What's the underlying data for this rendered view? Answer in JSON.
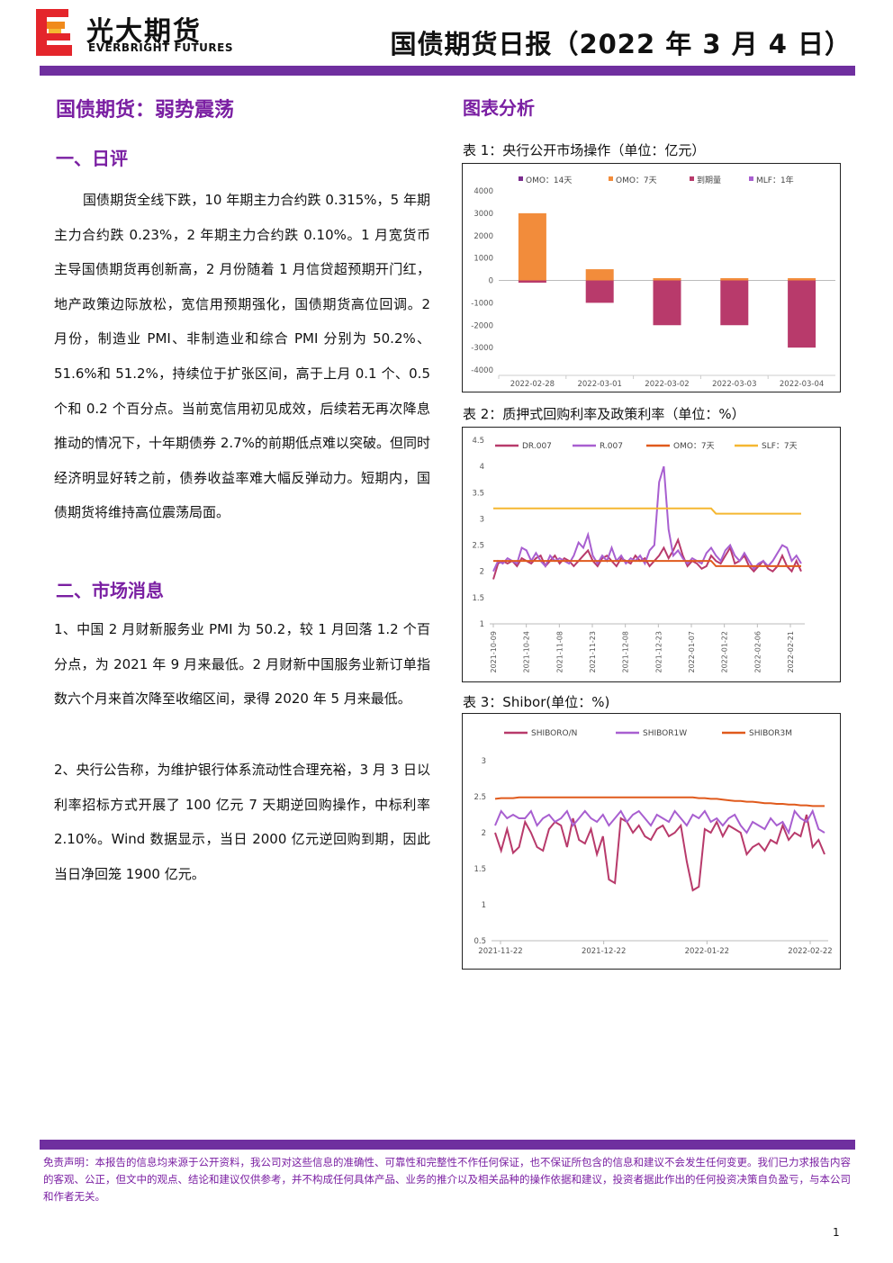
{
  "header": {
    "brand_cn": "光大期货",
    "brand_en": "EVERBRIGHT FUTURES",
    "report_title": "国债期货日报（2022 年 3 月 4 日）"
  },
  "article": {
    "title": "国债期货：弱势震荡",
    "section1_title": "一、日评",
    "section1_text": "国债期货全线下跌，10 年期主力合约跌 0.315%，5 年期主力合约跌 0.23%，2 年期主力合约跌 0.10%。1 月宽货币主导国债期货再创新高，2 月份随着 1 月信贷超预期开门红，地产政策边际放松，宽信用预期强化，国债期货高位回调。2 月份，制造业 PMI、非制造业和综合 PMI 分别为 50.2%、51.6%和 51.2%，持续位于扩张区间，高于上月 0.1 个、0.5 个和 0.2 个百分点。当前宽信用初见成效，后续若无再次降息推动的情况下，十年期债券 2.7%的前期低点难以突破。但同时经济明显好转之前，债券收益率难大幅反弹动力。短期内，国债期货将维持高位震荡局面。",
    "section2_title": "二、市场消息",
    "news1": "1、中国 2 月财新服务业 PMI 为 50.2，较 1 月回落 1.2 个百分点，为 2021 年 9 月来最低。2 月财新中国服务业新订单指数六个月来首次降至收缩区间，录得 2020 年 5 月来最低。",
    "news2": "2、央行公告称，为维护银行体系流动性合理充裕，3 月 3 日以利率招标方式开展了 100 亿元 7 天期逆回购操作，中标利率 2.10%。Wind 数据显示，当日 2000 亿元逆回购到期，因此当日净回笼 1900 亿元。"
  },
  "charts_section_title": "图表分析",
  "captions": {
    "c1": "表 1：央行公开市场操作（单位：亿元）",
    "c2": "表 2：质押式回购利率及政策利率（单位：%）",
    "c3": "表 3：Shibor(单位：%)"
  },
  "chart_data": [
    {
      "type": "bar",
      "categories": [
        "2022-02-28",
        "2022-03-01",
        "2022-03-02",
        "2022-03-03",
        "2022-03-04"
      ],
      "series": [
        {
          "name": "OMO：14天",
          "color": "#7b2d8e",
          "values": [
            0,
            0,
            0,
            0,
            0
          ]
        },
        {
          "name": "OMO：7天",
          "color": "#f28c3b",
          "values": [
            3000,
            500,
            100,
            100,
            100
          ]
        },
        {
          "name": "到期量",
          "color": "#b83a6b",
          "values": [
            -100,
            -1000,
            -2000,
            -2000,
            -3000
          ]
        },
        {
          "name": "MLF：1年",
          "color": "#a85fd0",
          "values": [
            0,
            0,
            0,
            0,
            0
          ]
        }
      ],
      "ylim": [
        -4000,
        4000
      ],
      "yticks": [
        4000,
        3000,
        2000,
        1000,
        0,
        -1000,
        -2000,
        -3000,
        -4000
      ]
    },
    {
      "type": "line",
      "x_ticks": [
        "2021-10-09",
        "2021-10-24",
        "2021-11-08",
        "2021-11-23",
        "2021-12-08",
        "2021-12-23",
        "2022-01-07",
        "2022-01-22",
        "2022-02-06",
        "2022-02-21"
      ],
      "ylim": [
        1,
        4.5
      ],
      "yticks": [
        "4.5",
        "4",
        "3.5",
        "3",
        "2.5",
        "2",
        "1.5",
        "1"
      ],
      "series": [
        {
          "name": "DR.007",
          "color": "#b83a6b",
          "values": [
            1.85,
            2.15,
            2.2,
            2.15,
            2.2,
            2.1,
            2.25,
            2.2,
            2.15,
            2.25,
            2.3,
            2.1,
            2.2,
            2.3,
            2.15,
            2.25,
            2.2,
            2.1,
            2.2,
            2.3,
            2.4,
            2.2,
            2.1,
            2.25,
            2.3,
            2.2,
            2.1,
            2.25,
            2.2,
            2.15,
            2.3,
            2.2,
            2.25,
            2.1,
            2.2,
            2.3,
            2.45,
            2.25,
            2.4,
            2.6,
            2.3,
            2.1,
            2.2,
            2.15,
            2.05,
            2.1,
            2.3,
            2.2,
            2.15,
            2.3,
            2.45,
            2.15,
            2.2,
            2.3,
            2.1,
            2.0,
            2.1,
            2.2,
            2.05,
            2.0,
            2.1,
            2.3,
            2.1,
            2.0,
            2.2,
            2.0
          ]
        },
        {
          "name": "R.007",
          "color": "#a85fd0",
          "values": [
            2.0,
            2.2,
            2.15,
            2.25,
            2.2,
            2.15,
            2.45,
            2.4,
            2.2,
            2.35,
            2.2,
            2.1,
            2.3,
            2.2,
            2.25,
            2.2,
            2.15,
            2.3,
            2.55,
            2.45,
            2.7,
            2.3,
            2.15,
            2.3,
            2.2,
            2.45,
            2.2,
            2.3,
            2.15,
            2.25,
            2.2,
            2.3,
            2.15,
            2.4,
            2.5,
            3.7,
            4.0,
            2.8,
            2.3,
            2.4,
            2.25,
            2.15,
            2.25,
            2.2,
            2.15,
            2.35,
            2.45,
            2.3,
            2.2,
            2.4,
            2.5,
            2.3,
            2.2,
            2.35,
            2.2,
            2.05,
            2.15,
            2.2,
            2.1,
            2.2,
            2.35,
            2.5,
            2.45,
            2.2,
            2.3,
            2.15
          ]
        },
        {
          "name": "OMO：7天",
          "color": "#e05a1c",
          "values": [
            2.2,
            2.2,
            2.2,
            2.2,
            2.2,
            2.2,
            2.2,
            2.2,
            2.2,
            2.2,
            2.2,
            2.2,
            2.2,
            2.2,
            2.2,
            2.2,
            2.2,
            2.2,
            2.2,
            2.2,
            2.2,
            2.2,
            2.2,
            2.2,
            2.2,
            2.2,
            2.2,
            2.2,
            2.2,
            2.2,
            2.2,
            2.2,
            2.2,
            2.2,
            2.2,
            2.2,
            2.2,
            2.2,
            2.2,
            2.2,
            2.2,
            2.2,
            2.2,
            2.2,
            2.2,
            2.2,
            2.2,
            2.1,
            2.1,
            2.1,
            2.1,
            2.1,
            2.1,
            2.1,
            2.1,
            2.1,
            2.1,
            2.1,
            2.1,
            2.1,
            2.1,
            2.1,
            2.1,
            2.1,
            2.1,
            2.1
          ]
        },
        {
          "name": "SLF：7天",
          "color": "#f5b731",
          "values": [
            3.2,
            3.2,
            3.2,
            3.2,
            3.2,
            3.2,
            3.2,
            3.2,
            3.2,
            3.2,
            3.2,
            3.2,
            3.2,
            3.2,
            3.2,
            3.2,
            3.2,
            3.2,
            3.2,
            3.2,
            3.2,
            3.2,
            3.2,
            3.2,
            3.2,
            3.2,
            3.2,
            3.2,
            3.2,
            3.2,
            3.2,
            3.2,
            3.2,
            3.2,
            3.2,
            3.2,
            3.2,
            3.2,
            3.2,
            3.2,
            3.2,
            3.2,
            3.2,
            3.2,
            3.2,
            3.2,
            3.2,
            3.1,
            3.1,
            3.1,
            3.1,
            3.1,
            3.1,
            3.1,
            3.1,
            3.1,
            3.1,
            3.1,
            3.1,
            3.1,
            3.1,
            3.1,
            3.1,
            3.1,
            3.1,
            3.1
          ]
        }
      ]
    },
    {
      "type": "line",
      "x_ticks": [
        "2021-11-22",
        "2021-12-22",
        "2022-01-22",
        "2022-02-22"
      ],
      "ylim": [
        0.5,
        3
      ],
      "yticks": [
        "3",
        "2.5",
        "2",
        "1.5",
        "1",
        "0.5"
      ],
      "series": [
        {
          "name": "SHIBORO/N",
          "color": "#b83a6b",
          "values": [
            2.0,
            1.75,
            2.05,
            1.72,
            1.8,
            2.15,
            2.0,
            1.8,
            1.75,
            2.05,
            2.15,
            2.1,
            1.8,
            2.2,
            1.9,
            1.85,
            2.05,
            1.7,
            1.95,
            1.35,
            1.3,
            2.2,
            2.15,
            2.0,
            2.1,
            1.95,
            1.9,
            2.05,
            2.1,
            1.95,
            2.0,
            2.1,
            1.6,
            1.2,
            1.25,
            2.05,
            2.0,
            2.15,
            1.95,
            2.1,
            2.05,
            2.0,
            1.7,
            1.8,
            1.85,
            1.75,
            1.9,
            1.85,
            2.1,
            1.9,
            2.0,
            1.95,
            2.25,
            1.8,
            1.9,
            1.7
          ]
        },
        {
          "name": "SHIBOR1W",
          "color": "#a85fd0",
          "values": [
            2.1,
            2.3,
            2.2,
            2.25,
            2.2,
            2.2,
            2.3,
            2.1,
            2.2,
            2.25,
            2.15,
            2.2,
            2.3,
            2.1,
            2.2,
            2.3,
            2.2,
            2.15,
            2.25,
            2.1,
            2.2,
            2.3,
            2.15,
            2.25,
            2.3,
            2.2,
            2.1,
            2.25,
            2.2,
            2.15,
            2.3,
            2.2,
            2.1,
            2.25,
            2.2,
            2.3,
            2.15,
            2.2,
            2.1,
            2.2,
            2.25,
            2.1,
            2.0,
            2.15,
            2.1,
            2.05,
            2.2,
            2.1,
            2.15,
            2.0,
            2.3,
            2.2,
            2.15,
            2.3,
            2.05,
            2.0
          ]
        },
        {
          "name": "SHIBOR3M",
          "color": "#e05a1c",
          "values": [
            2.47,
            2.48,
            2.48,
            2.48,
            2.49,
            2.49,
            2.49,
            2.49,
            2.49,
            2.49,
            2.49,
            2.49,
            2.49,
            2.49,
            2.49,
            2.49,
            2.49,
            2.49,
            2.49,
            2.49,
            2.49,
            2.49,
            2.49,
            2.49,
            2.49,
            2.49,
            2.49,
            2.49,
            2.49,
            2.49,
            2.49,
            2.49,
            2.49,
            2.49,
            2.48,
            2.48,
            2.47,
            2.47,
            2.46,
            2.45,
            2.44,
            2.44,
            2.43,
            2.43,
            2.42,
            2.41,
            2.41,
            2.4,
            2.4,
            2.39,
            2.39,
            2.38,
            2.38,
            2.37,
            2.37,
            2.37
          ]
        }
      ]
    }
  ],
  "footer": {
    "disclaimer": "免责声明：本报告的信息均来源于公开资料，我公司对这些信息的准确性、可靠性和完整性不作任何保证，也不保证所包含的信息和建议不会发生任何变更。我们已力求报告内容的客观、公正，但文中的观点、结论和建议仅供参考，并不构成任何具体产品、业务的推介以及相关品种的操作依据和建议，投资者据此作出的任何投资决策自负盈亏，与本公司和作者无关。",
    "page_number": "1"
  }
}
